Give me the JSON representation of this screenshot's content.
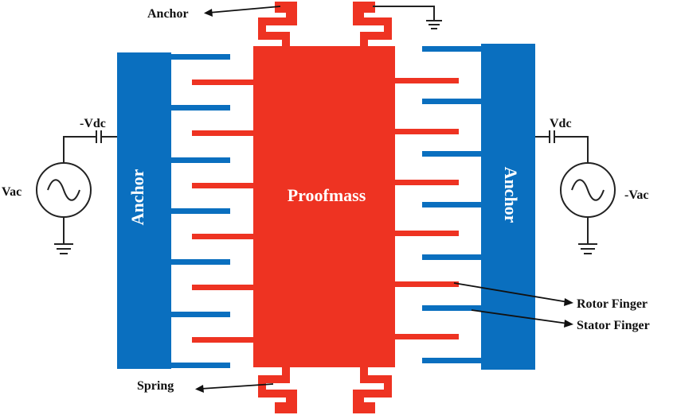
{
  "diagram": {
    "labels": {
      "proofmass": "Proofmass",
      "anchor_left": "Anchor",
      "anchor_right": "Anchor",
      "anchor_top": "Anchor",
      "spring": "Spring",
      "rotor_finger": "Rotor Finger",
      "stator_finger": "Stator Finger",
      "left_dc": "-Vdc",
      "left_ac": "Vac",
      "right_dc": "Vdc",
      "right_ac": "-Vac"
    },
    "colors": {
      "rotor": "#ee3322",
      "stator": "#0a6fbf",
      "wire": "#222222"
    }
  }
}
